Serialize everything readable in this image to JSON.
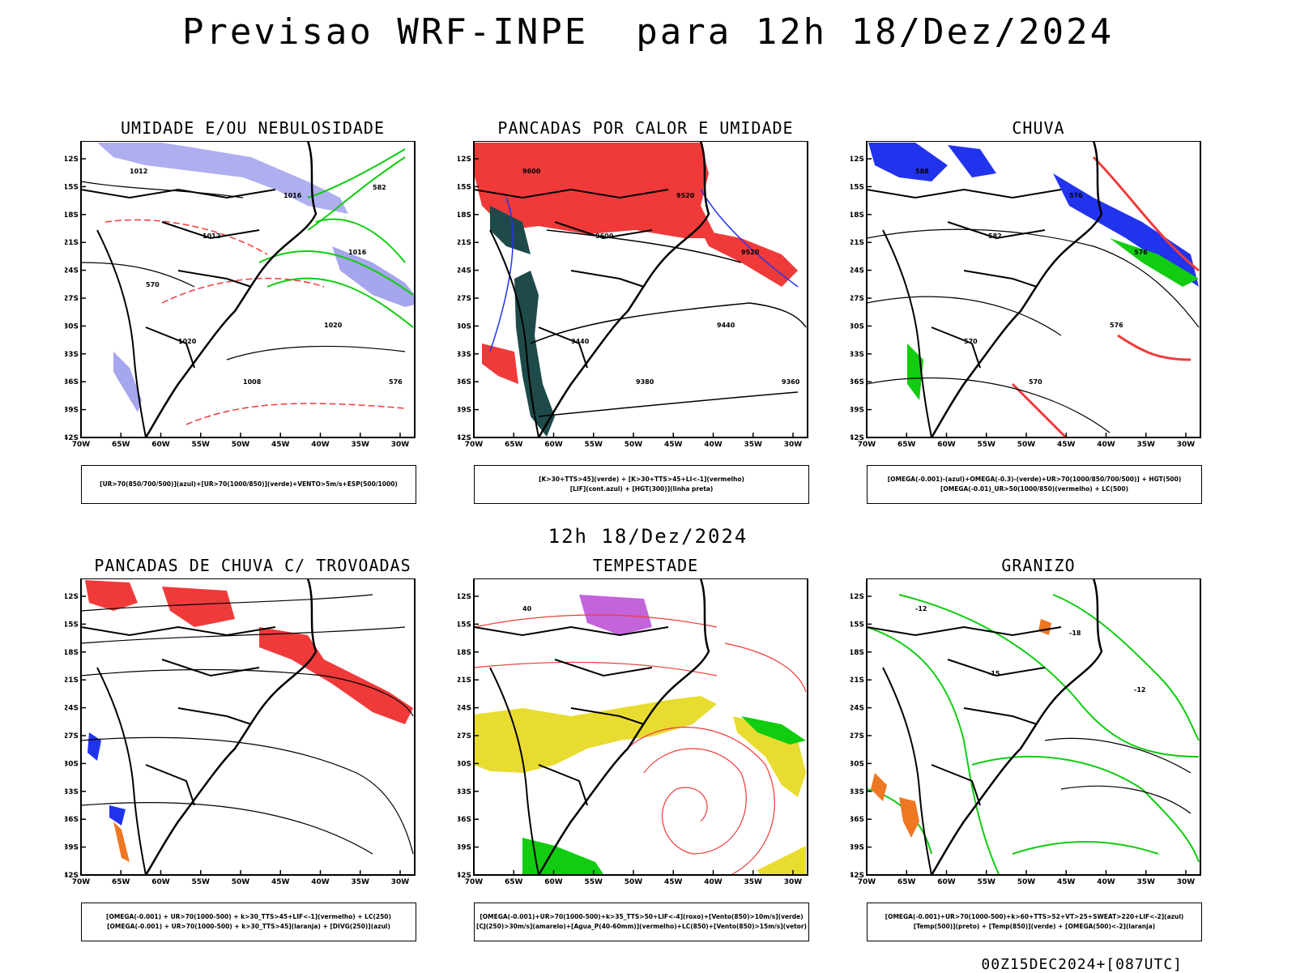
{
  "header": {
    "title": "Previsao WRF-INPE  para 12h 18/Dez/2024"
  },
  "middle": {
    "title": "12h 18/Dez/2024"
  },
  "footer": {
    "run_label": "00Z15DEC2024+[087UTC]"
  },
  "axes": {
    "lat_labels": [
      "12S",
      "15S",
      "18S",
      "21S",
      "24S",
      "27S",
      "30S",
      "33S",
      "36S",
      "39S",
      "42S"
    ],
    "lon_labels": [
      "70W",
      "65W",
      "60W",
      "55W",
      "50W",
      "45W",
      "40W",
      "35W",
      "30W"
    ]
  },
  "colors": {
    "red": "#f03a3a",
    "blue": "#2233ee",
    "green": "#11cc11",
    "lavender": "#a6a6ee",
    "darkgreen": "#1e4a4a",
    "yellow": "#e8dc30",
    "orange": "#ee7722",
    "purple": "#aa22cc"
  },
  "panels": [
    {
      "id": "umidade",
      "title": "UMIDADE E/OU NEBULOSIDADE",
      "legend": [
        "[UR>70(850/700/500)](azul)+[UR>70(1000/850)](verde)+VENTO>5m/s+ESP(500/1000)"
      ],
      "contour_labels": [
        "1012",
        "1012",
        "1016",
        "1016",
        "1020",
        "1020",
        "1008",
        "576",
        "570",
        "582"
      ]
    },
    {
      "id": "pancadas_calor",
      "title": "PANCADAS POR CALOR E UMIDADE",
      "legend": [
        "[K>30+TTS>45](verde) + [K>30+TTS>45+LI<-1](vermelho)",
        "[LIF](cont.azul) + [HGT(300)](linha preta)"
      ],
      "contour_labels": [
        "9600",
        "9600",
        "9520",
        "9520",
        "9440",
        "9440",
        "9380",
        "9360"
      ]
    },
    {
      "id": "chuva",
      "title": "CHUVA",
      "legend": [
        "[OMEGA(-0.001)-(azul)+OMEGA(-0.3)-(verde)+UR>70(1000/850/700/500)] + HGT(500)",
        "[OMEGA(-0.01)_UR>50(1000/850)(vermelho) + LC(500)"
      ],
      "contour_labels": [
        "588",
        "582",
        "576",
        "576",
        "570",
        "576",
        "570"
      ]
    },
    {
      "id": "trovoadas",
      "title": "PANCADAS DE CHUVA C/ TROVOADAS",
      "legend": [
        "[OMEGA(-0.001) + UR>70(1000-500) + k>30_TTS>45+LIF<-1](vermelho) + LC(250)",
        "[OMEGA(-0.001) + UR>70(1000-500) + k>30_TTS>45](laranja) + [DIVG(250)](azul)"
      ],
      "contour_labels": []
    },
    {
      "id": "tempestade",
      "title": "TEMPESTADE",
      "legend": [
        "[OMEGA(-0.001)+UR>70(1000-500)+k>35_TTS>50+LIF<-4](roxo)+[Vento(850)>10m/s](verde)",
        "[CJ(250)>30m/s](amarelo)+[Agua_P(40-60mm)](vermelho)+LC(850)+[Vento(850)>15m/s](vetor)"
      ],
      "contour_labels": [
        "40"
      ]
    },
    {
      "id": "granizo",
      "title": "GRANIZO",
      "legend": [
        "[OMEGA(-0.001)+UR>70(1000-500)+k>60+TTS>52+VT>25+SWEAT>220+LIF<-2](azul)",
        "[Temp(500)](preto) + [Temp(850)](verde) + [OMEGA(500)<-2](laranja)"
      ],
      "contour_labels": [
        "-12",
        "-15",
        "-18",
        "-12"
      ]
    }
  ]
}
